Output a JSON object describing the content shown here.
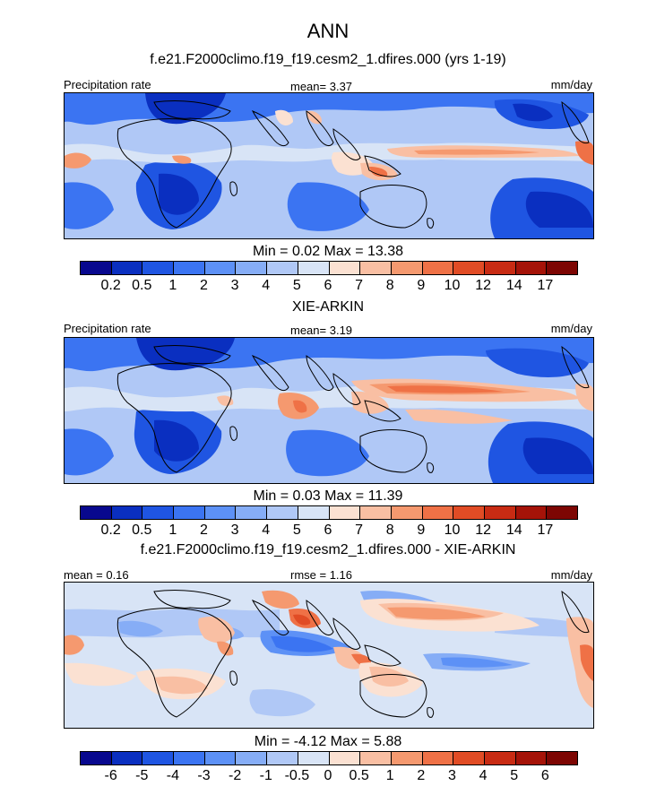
{
  "title": "ANN",
  "panels": [
    {
      "title": "f.e21.F2000climo.f19_f19.cesm2_1.dfires.000 (yrs 1-19)",
      "left_label": "Precipitation rate",
      "center_label": "mean=   3.37",
      "units": "mm/day",
      "minmax": "Min =   0.02 Max =  13.38"
    },
    {
      "title": "XIE-ARKIN",
      "left_label": "Precipitation rate",
      "center_label": "mean=   3.19",
      "units": "mm/day",
      "minmax": "Min =   0.03 Max =  11.39"
    },
    {
      "title": "f.e21.F2000climo.f19_f19.cesm2_1.dfires.000 - XIE-ARKIN",
      "left_label": "mean =   0.16",
      "center_label": "rmse =   1.16",
      "units": "mm/day",
      "minmax": "Min =  -4.12 Max =   5.88"
    }
  ],
  "colorbar_precip": {
    "levels": [
      "0.2",
      "0.5",
      "1",
      "2",
      "3",
      "4",
      "5",
      "6",
      "7",
      "8",
      "9",
      "10",
      "12",
      "14",
      "17"
    ],
    "colors": [
      "#08088e",
      "#0a2fc0",
      "#1f55e2",
      "#3b74f2",
      "#5d91f6",
      "#86adf6",
      "#b0c8f6",
      "#d8e4f6",
      "#fbe1d2",
      "#f9bfa3",
      "#f5996f",
      "#ef7146",
      "#e14c25",
      "#c82b13",
      "#a51308",
      "#7d0603"
    ]
  },
  "colorbar_diff": {
    "levels": [
      "-6",
      "-5",
      "-4",
      "-3",
      "-2",
      "-1",
      "-0.5",
      "0",
      "0.5",
      "1",
      "2",
      "3",
      "4",
      "5",
      "6"
    ],
    "colors": [
      "#08088e",
      "#0a2fc0",
      "#1f55e2",
      "#3b74f2",
      "#5d91f6",
      "#86adf6",
      "#b0c8f6",
      "#d8e4f6",
      "#fbe1d2",
      "#f9bfa3",
      "#f5996f",
      "#ef7146",
      "#e14c25",
      "#c82b13",
      "#a51308",
      "#7d0603"
    ]
  }
}
